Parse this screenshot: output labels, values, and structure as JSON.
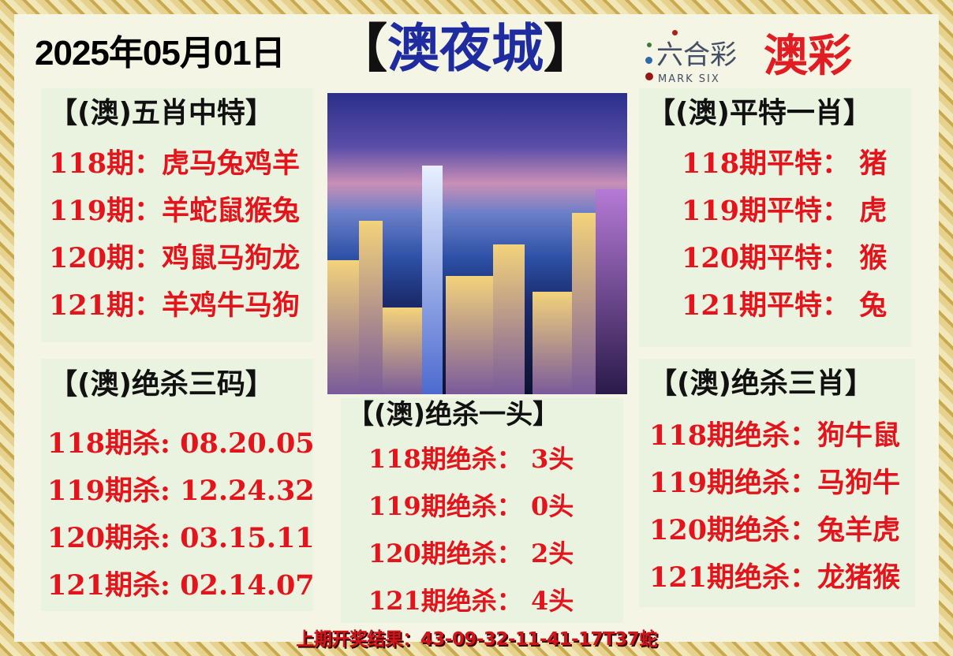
{
  "header": {
    "date": "2025年05月01日",
    "title_open": "【",
    "title": "澳夜城",
    "title_close": "】",
    "logo_cn": "六合彩",
    "logo_en": "MARK SIX",
    "brand": "澳彩"
  },
  "panels": {
    "five": {
      "title": "【(澳)五肖中特】",
      "rows": [
        "118期：虎马兔鸡羊",
        "119期：羊蛇鼠猴兔",
        "120期：鸡鼠马狗龙",
        "121期：羊鸡牛马狗"
      ]
    },
    "flat": {
      "title": "【(澳)平特一肖】",
      "rows": [
        "118期平特：  猪",
        "119期平特：  虎",
        "120期平特：  猴",
        "121期平特：  兔"
      ]
    },
    "kill3code": {
      "title": "【(澳)绝杀三码】",
      "rows": [
        "118期杀: 08.20.05",
        "119期杀: 12.24.32",
        "120期杀: 03.15.11",
        "121期杀: 02.14.07"
      ]
    },
    "killhead": {
      "title": "【(澳)绝杀一头】",
      "rows": [
        "118期绝杀：  3头",
        "119期绝杀：  0头",
        "120期绝杀：  2头",
        "121期绝杀：  4头"
      ]
    },
    "kill3zodiac": {
      "title": "【(澳)绝杀三肖】",
      "rows": [
        "118期绝杀：狗牛鼠",
        "119期绝杀：马狗牛",
        "120期绝杀：兔羊虎",
        "121期绝杀：龙猪猴"
      ]
    }
  },
  "footer": {
    "last_result": "上期开奖结果：43-09-32-11-41-17T37蛇"
  },
  "colors": {
    "red": "#e3141c",
    "blue": "#1e2ca0",
    "background": "#f4f5e4"
  }
}
